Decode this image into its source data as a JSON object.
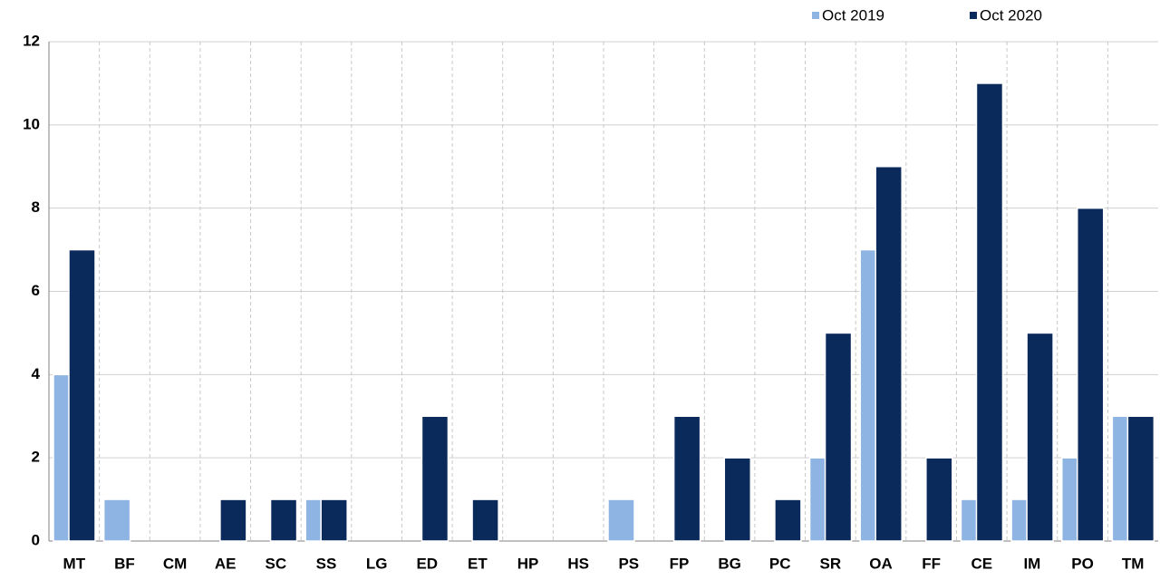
{
  "chart_data": {
    "type": "bar",
    "categories": [
      "MT",
      "BF",
      "CM",
      "AE",
      "SC",
      "SS",
      "LG",
      "ED",
      "ET",
      "HP",
      "HS",
      "PS",
      "FP",
      "BG",
      "PC",
      "SR",
      "OA",
      "FF",
      "CE",
      "IM",
      "PO",
      "TM"
    ],
    "series": [
      {
        "name": "Oct 2019",
        "color": "#8eb4e3",
        "values": [
          4,
          1,
          0,
          0,
          0,
          1,
          0,
          0,
          0,
          0,
          0,
          1,
          0,
          0,
          0,
          2,
          7,
          0,
          1,
          1,
          2,
          3
        ]
      },
      {
        "name": "Oct 2020",
        "color": "#0b2a5c",
        "values": [
          7,
          0,
          0,
          1,
          1,
          1,
          0,
          3,
          1,
          0,
          0,
          0,
          3,
          2,
          1,
          5,
          9,
          2,
          11,
          5,
          8,
          3
        ]
      }
    ],
    "ylim": [
      0,
      12
    ],
    "yticks": [
      0,
      2,
      4,
      6,
      8,
      10,
      12
    ],
    "grid": true,
    "legend": "top-right"
  }
}
